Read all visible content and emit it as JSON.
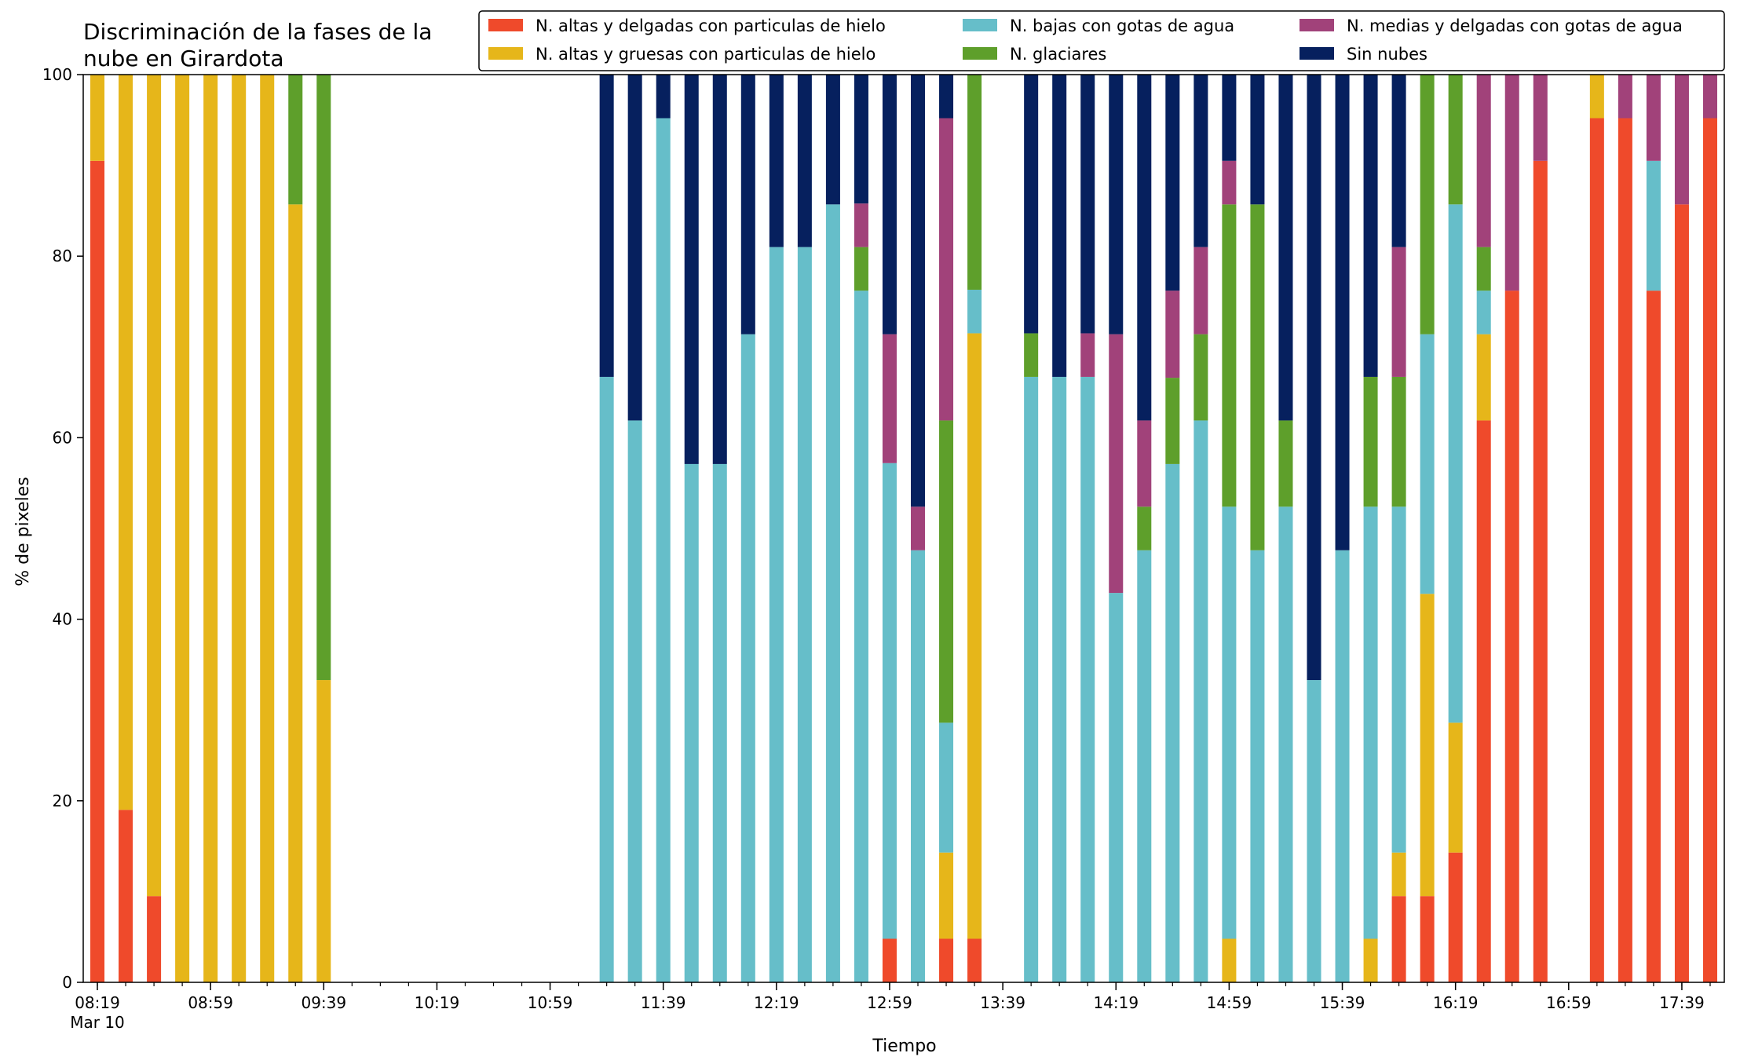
{
  "chart_data": {
    "type": "bar",
    "stacked": true,
    "title_lines": [
      "Discriminación de la fases de la",
      "nube en Girardota"
    ],
    "xlabel": "Tiempo",
    "ylabel": "% de pixeles",
    "ylim": [
      0,
      100
    ],
    "yticks": [
      0,
      20,
      40,
      60,
      80,
      100
    ],
    "grid": false,
    "legend_position": "top-right",
    "x_start": "08:19",
    "x_interval_minutes": 10,
    "x_slots": 58,
    "x_tick_labels": [
      {
        "slot": 0,
        "label": "08:19",
        "sub": "Mar 10"
      },
      {
        "slot": 4,
        "label": "08:59"
      },
      {
        "slot": 8,
        "label": "09:39"
      },
      {
        "slot": 12,
        "label": "10:19"
      },
      {
        "slot": 16,
        "label": "10:59"
      },
      {
        "slot": 20,
        "label": "11:39"
      },
      {
        "slot": 24,
        "label": "12:19"
      },
      {
        "slot": 28,
        "label": "12:59"
      },
      {
        "slot": 32,
        "label": "13:39"
      },
      {
        "slot": 36,
        "label": "14:19"
      },
      {
        "slot": 40,
        "label": "14:59"
      },
      {
        "slot": 44,
        "label": "15:39"
      },
      {
        "slot": 48,
        "label": "16:19"
      },
      {
        "slot": 52,
        "label": "16:59"
      },
      {
        "slot": 56,
        "label": "17:39"
      }
    ],
    "series": [
      {
        "name": "N. altas y delgadas con particulas de hielo",
        "color": "#ef4a2b"
      },
      {
        "name": "N. altas y gruesas con particulas de hielo",
        "color": "#e6b61a"
      },
      {
        "name": "N. bajas con gotas de agua",
        "color": "#66bec9"
      },
      {
        "name": "N. glaciares",
        "color": "#5e9f2b"
      },
      {
        "name": "N. medias y delgadas con gotas de agua",
        "color": "#a1427a"
      },
      {
        "name": "Sin nubes",
        "color": "#06205e"
      }
    ],
    "bars": [
      {
        "time": "08:19",
        "values": [
          90.5,
          9.5,
          0,
          0,
          0,
          0
        ]
      },
      {
        "time": "08:29",
        "values": [
          19,
          81,
          0,
          0,
          0,
          0
        ]
      },
      {
        "time": "08:39",
        "values": [
          9.5,
          90.5,
          0,
          0,
          0,
          0
        ]
      },
      {
        "time": "08:49",
        "values": [
          0,
          100,
          0,
          0,
          0,
          0
        ]
      },
      {
        "time": "08:59",
        "values": [
          0,
          100,
          0,
          0,
          0,
          0
        ]
      },
      {
        "time": "09:09",
        "values": [
          0,
          100,
          0,
          0,
          0,
          0
        ]
      },
      {
        "time": "09:19",
        "values": [
          0,
          100,
          0,
          0,
          0,
          0
        ]
      },
      {
        "time": "09:29",
        "values": [
          0,
          85.7,
          0,
          14.3,
          0,
          0
        ]
      },
      {
        "time": "09:39",
        "values": [
          0,
          33.3,
          0,
          66.7,
          0,
          0
        ]
      },
      {
        "time": "11:19",
        "values": [
          0,
          0,
          66.7,
          0,
          0,
          33.3
        ]
      },
      {
        "time": "11:29",
        "values": [
          0,
          0,
          61.9,
          0,
          0,
          38.1
        ]
      },
      {
        "time": "11:39",
        "values": [
          0,
          0,
          95.2,
          0,
          0,
          4.8
        ]
      },
      {
        "time": "11:49",
        "values": [
          0,
          0,
          57.1,
          0,
          0,
          42.9
        ]
      },
      {
        "time": "11:59",
        "values": [
          0,
          0,
          57.1,
          0,
          0,
          42.9
        ]
      },
      {
        "time": "12:09",
        "values": [
          0,
          0,
          71.4,
          0,
          0,
          28.6
        ]
      },
      {
        "time": "12:19",
        "values": [
          0,
          0,
          81,
          0,
          0,
          19
        ]
      },
      {
        "time": "12:29",
        "values": [
          0,
          0,
          81,
          0,
          0,
          19
        ]
      },
      {
        "time": "12:39",
        "values": [
          0,
          0,
          85.7,
          0,
          0,
          14.3
        ]
      },
      {
        "time": "12:49",
        "values": [
          0,
          0,
          76.2,
          4.8,
          4.8,
          14.2
        ]
      },
      {
        "time": "12:59",
        "values": [
          4.8,
          0,
          52.4,
          0,
          14.2,
          28.6
        ]
      },
      {
        "time": "13:09",
        "values": [
          0,
          0,
          47.6,
          0,
          4.8,
          47.6
        ]
      },
      {
        "time": "13:19",
        "values": [
          4.8,
          9.5,
          14.3,
          33.3,
          33.3,
          4.8
        ]
      },
      {
        "time": "13:29",
        "values": [
          4.8,
          66.7,
          4.8,
          23.7,
          0,
          0
        ]
      },
      {
        "time": "13:49",
        "values": [
          0,
          0,
          66.7,
          4.8,
          0,
          28.5
        ]
      },
      {
        "time": "13:59",
        "values": [
          0,
          0,
          66.7,
          0,
          0,
          33.3
        ]
      },
      {
        "time": "14:09",
        "values": [
          0,
          0,
          66.7,
          0,
          4.8,
          28.5
        ]
      },
      {
        "time": "14:19",
        "values": [
          0,
          0,
          42.9,
          0,
          28.5,
          28.6
        ]
      },
      {
        "time": "14:29",
        "values": [
          0,
          0,
          47.6,
          4.8,
          9.5,
          38.1
        ]
      },
      {
        "time": "14:39",
        "values": [
          0,
          0,
          57.1,
          9.5,
          9.6,
          23.8
        ]
      },
      {
        "time": "14:49",
        "values": [
          0,
          0,
          61.9,
          9.5,
          9.6,
          19
        ]
      },
      {
        "time": "14:59",
        "values": [
          0,
          4.8,
          47.6,
          33.3,
          4.8,
          9.5
        ]
      },
      {
        "time": "15:09",
        "values": [
          0,
          0,
          47.6,
          38.1,
          0,
          14.3
        ]
      },
      {
        "time": "15:19",
        "values": [
          0,
          0,
          52.4,
          9.5,
          0,
          38.1
        ]
      },
      {
        "time": "15:29",
        "values": [
          0,
          0,
          33.3,
          0,
          0,
          66.7
        ]
      },
      {
        "time": "15:39",
        "values": [
          0,
          0,
          47.6,
          0,
          0,
          52.4
        ]
      },
      {
        "time": "15:49",
        "values": [
          0,
          4.8,
          47.6,
          14.3,
          0,
          33.3
        ]
      },
      {
        "time": "15:59",
        "values": [
          9.5,
          4.8,
          38.1,
          14.3,
          14.3,
          19
        ]
      },
      {
        "time": "16:09",
        "values": [
          9.5,
          33.3,
          28.6,
          28.6,
          0,
          0
        ]
      },
      {
        "time": "16:19",
        "values": [
          14.3,
          14.3,
          57.1,
          14.3,
          0,
          0
        ]
      },
      {
        "time": "16:29",
        "values": [
          61.9,
          9.5,
          4.8,
          4.8,
          19,
          0
        ]
      },
      {
        "time": "16:39",
        "values": [
          76.2,
          0,
          0,
          0,
          23.8,
          0
        ]
      },
      {
        "time": "16:49",
        "values": [
          90.5,
          0,
          0,
          0,
          9.5,
          0
        ]
      },
      {
        "time": "17:09",
        "values": [
          95.2,
          4.8,
          0,
          0,
          0,
          0
        ]
      },
      {
        "time": "17:19",
        "values": [
          95.2,
          0,
          0,
          0,
          4.8,
          0
        ]
      },
      {
        "time": "17:29",
        "values": [
          76.2,
          0,
          14.3,
          0,
          9.5,
          0
        ]
      },
      {
        "time": "17:39",
        "values": [
          85.7,
          0,
          0,
          0,
          14.3,
          0
        ]
      },
      {
        "time": "17:49",
        "values": [
          95.2,
          0,
          0,
          0,
          4.8,
          0
        ]
      }
    ]
  }
}
